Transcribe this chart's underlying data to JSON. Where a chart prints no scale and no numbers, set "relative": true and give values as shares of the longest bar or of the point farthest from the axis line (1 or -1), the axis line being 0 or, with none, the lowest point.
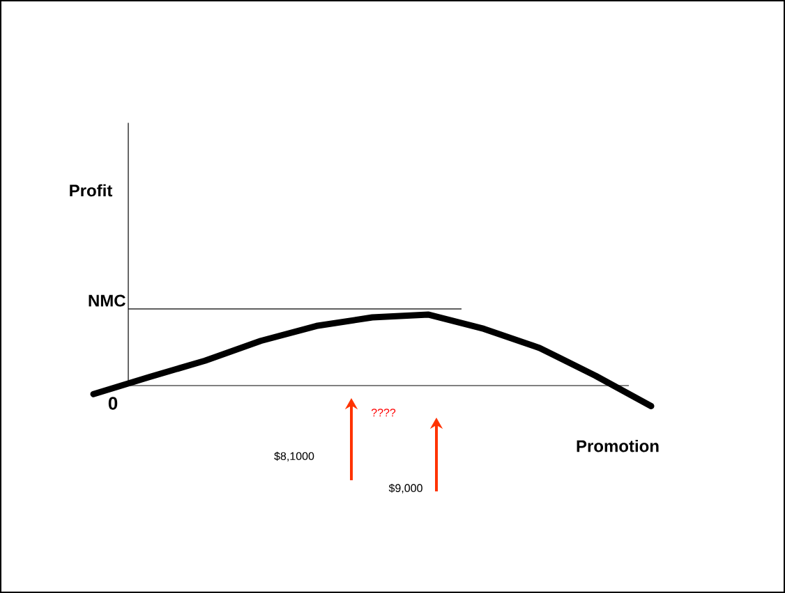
{
  "chart_data": {
    "type": "line",
    "relative": true,
    "xlabel": "Promotion",
    "marker": "none",
    "categories": [
      null,
      null,
      null,
      null,
      null,
      null,
      null,
      null,
      null,
      null,
      null
    ],
    "series": [
      {
        "color": "#000000",
        "values": [
          -0.12,
          0.12,
          0.35,
          0.63,
          0.84,
          0.96,
          1.0,
          0.8,
          0.53,
          0.14,
          -0.29
        ]
      }
    ],
    "ref_lines": [
      {
        "axis": "y",
        "value": 1.08,
        "label": "NMC",
        "color": "#000000"
      }
    ],
    "annotations": [
      "Profit",
      "0",
      "????",
      "$8,1000",
      "$9,000"
    ]
  }
}
